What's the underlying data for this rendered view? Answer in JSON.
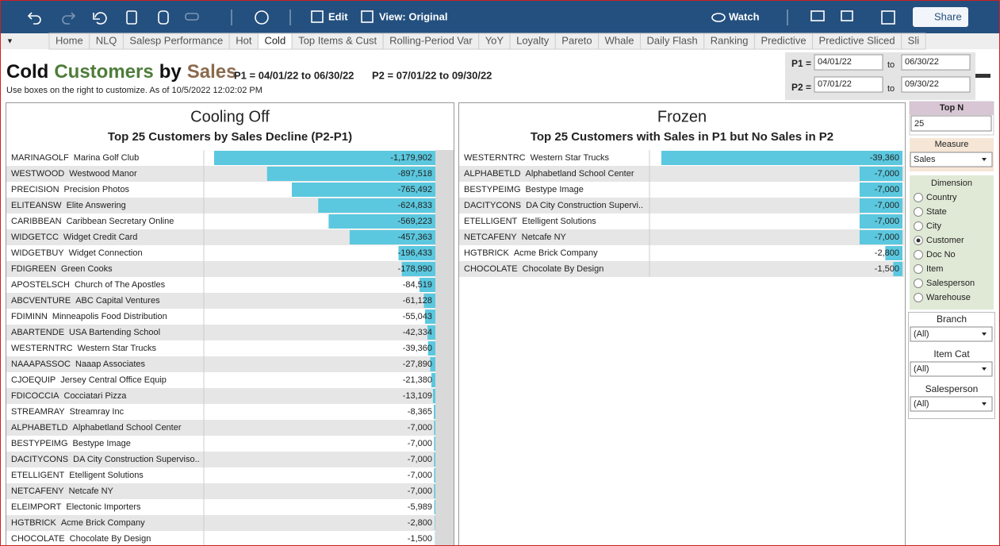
{
  "toolbar": {
    "edit": "Edit",
    "view": "View: Original",
    "watch": "Watch",
    "share": "Share"
  },
  "tabs": {
    "items": [
      "Home",
      "NLQ",
      "Salesp Performance",
      "Hot",
      "Cold",
      "Top Items & Cust",
      "Rolling-Period Var",
      "YoY",
      "Loyalty",
      "Pareto",
      "Whale",
      "Daily Flash",
      "Ranking",
      "Predictive",
      "Predictive Sliced",
      "Sli"
    ],
    "active": 4
  },
  "header": {
    "title": [
      "Cold",
      "Customers",
      "by",
      "Sales"
    ],
    "title_colors": [
      "#111111",
      "#4e7d3a",
      "#111111",
      "#8b6a4d"
    ],
    "p1": "P1 = 04/01/22 to 06/30/22",
    "p2": "P2 =  07/01/22 to  09/30/22",
    "note": "Use boxes on the right to customize.  As of 10/5/2022 12:02:02 PM"
  },
  "dates": {
    "p1_label": "P1 =",
    "p1_from": "04/01/22",
    "p1_to": "06/30/22",
    "to": "to",
    "p2_label": "P2 =",
    "p2_from": "07/01/22",
    "p2_to": "09/30/22"
  },
  "chart_data": [
    {
      "type": "bar",
      "orientation": "horizontal",
      "title": "Cooling Off",
      "subtitle": "Top 25 Customers by Sales Decline (P2-P1)",
      "codes": [
        "MARINAGOLF",
        "WESTWOOD",
        "PRECISION",
        "ELITEANSW",
        "CARIBBEAN",
        "WIDGETCC",
        "WIDGETBUY",
        "FDIGREEN",
        "APOSTELSCH",
        "ABCVENTURE",
        "FDIMINN",
        "ABARTENDE",
        "WESTERNTRC",
        "NAAAPASSOC",
        "CJOEQUIP",
        "FDICOCCIA",
        "STREAMRAY",
        "ALPHABETLD",
        "BESTYPEIMG",
        "DACITYCONS",
        "ETELLIGENT",
        "NETCAFENY",
        "ELEIMPORT",
        "HGTBRICK",
        "CHOCOLATE"
      ],
      "categories": [
        "Marina Golf Club",
        "Westwood Manor",
        "Precision Photos",
        "Elite Answering",
        "Caribbean Secretary Online",
        "Widget Credit Card",
        "Widget Connection",
        "Green Cooks",
        "Church of The Apostles",
        "ABC Capital Ventures",
        "Minneapolis Food Distribution",
        "USA Bartending School",
        "Western Star Trucks",
        "Naaap Associates",
        "Jersey Central Office Equip",
        "Cocciatari Pizza",
        "Streamray Inc",
        "Alphabetland School Center",
        "Bestype Image",
        "DA City Construction Superviso..",
        "Etelligent Solutions",
        "Netcafe NY",
        "Electonic Importers",
        "Acme Brick Company",
        "Chocolate By Design"
      ],
      "values": [
        -1179902,
        -897518,
        -765492,
        -624833,
        -569223,
        -457363,
        -196433,
        -178990,
        -84519,
        -61128,
        -55043,
        -42334,
        -39360,
        -27890,
        -21380,
        -13109,
        -8365,
        -7000,
        -7000,
        -7000,
        -7000,
        -7000,
        -5989,
        -2800,
        -1500
      ],
      "value_labels": [
        "-1,179,902",
        "-897,518",
        "-765,492",
        "-624,833",
        "-569,223",
        "-457,363",
        "-196,433",
        "-178,990",
        "-84,519",
        "-61,128",
        "-55,043",
        "-42,334",
        "-39,360",
        "-27,890",
        "-21,380",
        "-13,109",
        "-8,365",
        "-7,000",
        "-7,000",
        "-7,000",
        "-7,000",
        "-7,000",
        "-5,989",
        "-2,800",
        "-1,500"
      ],
      "color": "#5bc8df",
      "xlim": [
        -1179902,
        0
      ]
    },
    {
      "type": "bar",
      "orientation": "horizontal",
      "title": "Frozen",
      "subtitle": "Top 25 Customers with Sales in P1 but No Sales in P2",
      "codes": [
        "WESTERNTRC",
        "ALPHABETLD",
        "BESTYPEIMG",
        "DACITYCONS",
        "ETELLIGENT",
        "NETCAFENY",
        "HGTBRICK",
        "CHOCOLATE"
      ],
      "categories": [
        "Western Star Trucks",
        "Alphabetland School Center",
        "Bestype Image",
        "DA City Construction Supervi..",
        "Etelligent Solutions",
        "Netcafe NY",
        "Acme Brick Company",
        "Chocolate By Design"
      ],
      "values": [
        -39360,
        -7000,
        -7000,
        -7000,
        -7000,
        -7000,
        -2800,
        -1500
      ],
      "value_labels": [
        "-39,360",
        "-7,000",
        "-7,000",
        "-7,000",
        "-7,000",
        "-7,000",
        "-2,800",
        "-1,500"
      ],
      "color": "#5bc8df",
      "xlim": [
        -39360,
        0
      ]
    }
  ],
  "controls": {
    "top_n": {
      "label": "Top N",
      "value": 25
    },
    "measure": {
      "label": "Measure",
      "value": "Sales"
    },
    "dimension": {
      "label": "Dimension",
      "options": [
        "Country",
        "State",
        "City",
        "Customer",
        "Doc No",
        "Item",
        "Salesperson",
        "Warehouse"
      ],
      "selected": 3
    },
    "filters": [
      {
        "label": "Branch",
        "value": "(All)"
      },
      {
        "label": "Item Cat",
        "value": "(All)"
      },
      {
        "label": "Salesperson",
        "value": "(All)"
      }
    ]
  }
}
